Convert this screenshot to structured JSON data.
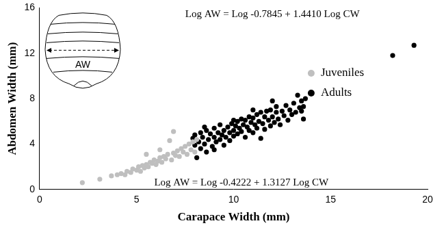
{
  "chart_data": {
    "type": "scatter",
    "xlabel": "Carapace Width (mm)",
    "ylabel": "Abdomen Width (mm)",
    "xlim": [
      0,
      20
    ],
    "xticks": [
      0,
      5,
      10,
      15,
      20
    ],
    "ylim": [
      0,
      16
    ],
    "yticks": [
      0,
      4,
      8,
      12,
      16
    ],
    "grid": false,
    "legend": "right",
    "marker": "circle",
    "annotations": [
      "Log AW = Log -0.7845 + 1.4410 Log CW",
      "Log AW = Log -0.4222 + 1.3127 Log CW",
      "AW"
    ],
    "series": [
      {
        "name": "Juveniles",
        "color": "#bfbfbf",
        "x": [
          2.2,
          3.1,
          3.7,
          4.0,
          4.2,
          4.4,
          4.5,
          4.7,
          4.8,
          5.0,
          5.1,
          5.2,
          5.3,
          5.4,
          5.5,
          5.6,
          5.7,
          5.8,
          5.9,
          6.0,
          6.1,
          6.2,
          6.3,
          6.4,
          6.5,
          6.6,
          6.7,
          6.8,
          6.9,
          6.9,
          7.0,
          7.1,
          7.2,
          7.3,
          7.4,
          7.5,
          7.6,
          7.7,
          7.8,
          7.9,
          8.0,
          8.1,
          5.5,
          6.2
        ],
        "values": [
          0.6,
          0.9,
          1.2,
          1.3,
          1.4,
          1.3,
          1.6,
          1.5,
          1.8,
          1.7,
          2.0,
          1.6,
          2.1,
          1.9,
          2.2,
          2.0,
          2.4,
          2.3,
          2.6,
          2.2,
          2.5,
          2.8,
          2.4,
          2.9,
          2.7,
          3.1,
          4.3,
          2.6,
          3.2,
          5.1,
          3.0,
          3.4,
          2.9,
          3.6,
          3.3,
          3.8,
          3.1,
          4.0,
          3.5,
          4.2,
          3.3,
          4.4,
          3.1,
          3.5
        ]
      },
      {
        "name": "Adults",
        "color": "#000000",
        "x": [
          7.9,
          8.0,
          8.0,
          8.1,
          8.2,
          8.3,
          8.3,
          8.4,
          8.5,
          8.6,
          8.6,
          8.7,
          8.8,
          8.9,
          9.0,
          9.0,
          9.1,
          9.2,
          9.3,
          9.3,
          9.4,
          9.5,
          9.5,
          9.6,
          9.7,
          9.8,
          9.8,
          9.9,
          10.0,
          10.0,
          10.1,
          10.2,
          10.2,
          10.3,
          10.4,
          10.4,
          10.5,
          10.6,
          10.6,
          10.7,
          10.8,
          10.8,
          10.9,
          11.0,
          11.0,
          11.1,
          11.2,
          11.2,
          11.3,
          11.4,
          11.4,
          11.5,
          11.6,
          11.6,
          11.7,
          11.8,
          11.9,
          11.9,
          12.0,
          12.1,
          12.2,
          12.2,
          12.3,
          12.4,
          12.5,
          12.6,
          12.7,
          12.8,
          12.9,
          13.0,
          13.1,
          13.2,
          13.3,
          13.4,
          13.5,
          13.5,
          13.6,
          13.7,
          13.6,
          9.0,
          10.0,
          11.0,
          12.0,
          8.5,
          18.2,
          19.3
        ],
        "values": [
          4.5,
          3.9,
          4.8,
          2.8,
          4.2,
          5.0,
          3.6,
          4.6,
          4.0,
          5.2,
          3.3,
          4.4,
          4.9,
          3.8,
          4.6,
          5.4,
          4.2,
          5.0,
          4.4,
          5.7,
          4.8,
          3.9,
          5.2,
          4.6,
          5.5,
          5.0,
          4.3,
          5.8,
          5.2,
          4.7,
          5.6,
          6.0,
          4.9,
          5.4,
          6.2,
          5.1,
          5.7,
          4.6,
          6.1,
          5.5,
          6.4,
          5.2,
          5.9,
          6.3,
          5.0,
          5.7,
          6.6,
          5.4,
          6.0,
          6.8,
          4.5,
          5.8,
          6.4,
          5.3,
          6.9,
          6.1,
          5.6,
          7.0,
          6.4,
          5.9,
          6.8,
          7.3,
          6.2,
          5.7,
          6.9,
          6.5,
          7.4,
          6.1,
          7.0,
          6.6,
          7.6,
          6.8,
          8.3,
          7.2,
          6.9,
          7.8,
          7.3,
          8.0,
          6.2,
          3.5,
          6.1,
          7.0,
          7.8,
          5.5,
          11.8,
          12.7
        ]
      }
    ]
  }
}
